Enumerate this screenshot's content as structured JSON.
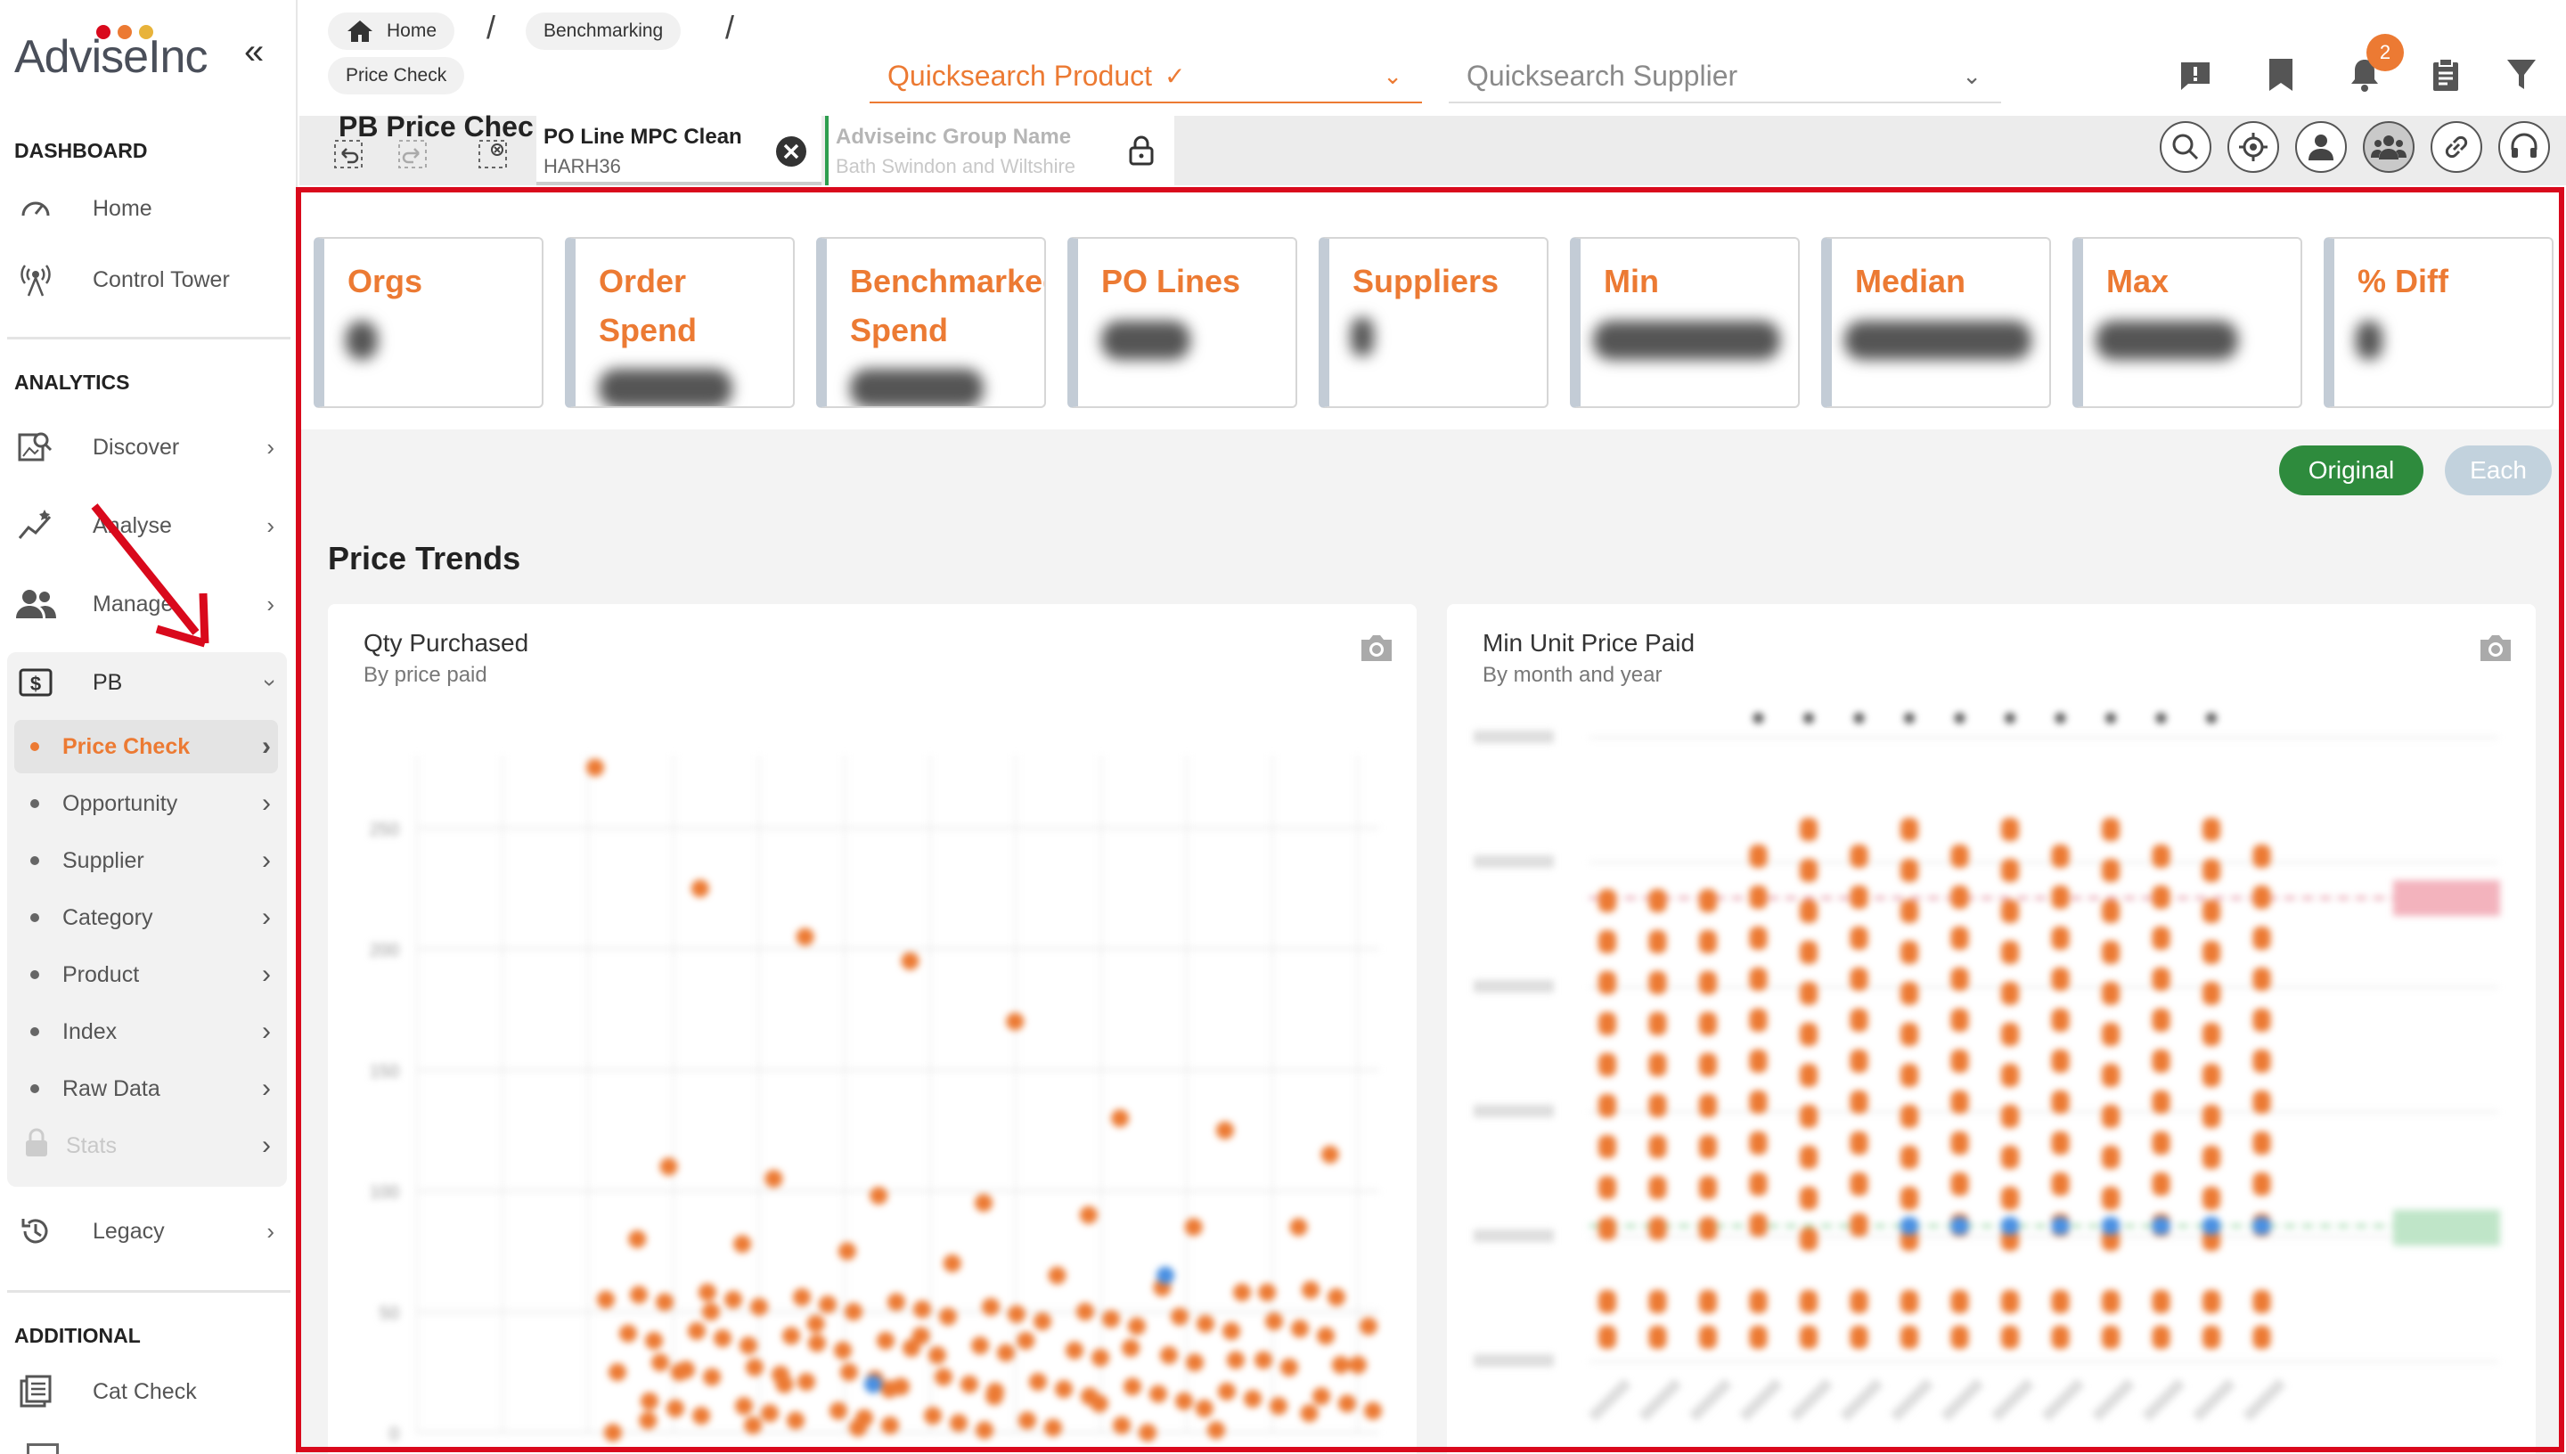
{
  "app": {
    "logo_text": "AdviseInc",
    "collapse_glyph": "«",
    "accent": "#ec7a33",
    "frame": "#d9091c"
  },
  "sidebar": {
    "sections": [
      {
        "title": "DASHBOARD"
      },
      {
        "title": "ANALYTICS"
      },
      {
        "title": "ADDITIONAL"
      }
    ],
    "dashboard_items": [
      {
        "label": "Home",
        "icon": "gauge-icon"
      },
      {
        "label": "Control Tower",
        "icon": "broadcast-tower-icon"
      }
    ],
    "analytics_items": [
      {
        "label": "Discover",
        "icon": "image-search-icon"
      },
      {
        "label": "Analyse",
        "icon": "trend-chart-icon"
      },
      {
        "label": "Manage",
        "icon": "users-icon"
      },
      {
        "label": "PB",
        "icon": "dollar-box-icon"
      }
    ],
    "pb_items": [
      {
        "label": "Price Check"
      },
      {
        "label": "Opportunity"
      },
      {
        "label": "Supplier"
      },
      {
        "label": "Category"
      },
      {
        "label": "Product"
      },
      {
        "label": "Index"
      },
      {
        "label": "Raw Data"
      },
      {
        "label": "Stats"
      }
    ],
    "legacy": {
      "label": "Legacy",
      "icon": "history-icon"
    },
    "additional_items": [
      {
        "label": "Cat Check",
        "icon": "list-doc-icon"
      }
    ]
  },
  "header": {
    "breadcrumbs": [
      "Home",
      "Benchmarking",
      "Price Check"
    ],
    "quicksearch_product": "Quicksearch Product",
    "quicksearch_supplier": "Quicksearch Supplier",
    "notification_count": "2",
    "page_tab": "PB Price Chec",
    "field1": {
      "label": "PO Line MPC Clean",
      "value": "HARH36"
    },
    "field2": {
      "label": "Adviseinc Group Name",
      "value": "Bath Swindon and Wiltshire"
    }
  },
  "kpis": [
    {
      "title": "Orgs"
    },
    {
      "title": "Order Spend"
    },
    {
      "title": "Benchmarked Spend"
    },
    {
      "title": "PO Lines"
    },
    {
      "title": "Suppliers"
    },
    {
      "title": "Min"
    },
    {
      "title": "Median"
    },
    {
      "title": "Max"
    },
    {
      "title": "% Diff"
    }
  ],
  "toggles": {
    "original": "Original",
    "each": "Each"
  },
  "price_trends": {
    "title": "Price Trends",
    "qty_panel": {
      "title": "Qty Purchased",
      "subtitle": "By price paid"
    },
    "min_panel": {
      "title": "Min Unit Price Paid",
      "subtitle": "By month and year"
    }
  },
  "chart_data": [
    {
      "type": "scatter",
      "title": "Qty Purchased",
      "subtitle": "By price paid",
      "y_ticks": [
        "0",
        "50",
        "100",
        "150",
        "200",
        "250"
      ],
      "ylim": [
        0,
        280
      ],
      "points_y": [
        275,
        225,
        205,
        195,
        170,
        130,
        125,
        115,
        110,
        105,
        98,
        95,
        90,
        85,
        85,
        80,
        78,
        75,
        70,
        65,
        60,
        58,
        55,
        50,
        45,
        40,
        38,
        35,
        30,
        28,
        25,
        20,
        18,
        15,
        12,
        10,
        8,
        5,
        3,
        2
      ]
    },
    {
      "type": "scatter",
      "title": "Min Unit Price Paid",
      "subtitle": "By month and year",
      "series": [
        {
          "name": "",
          "values": []
        }
      ]
    }
  ]
}
